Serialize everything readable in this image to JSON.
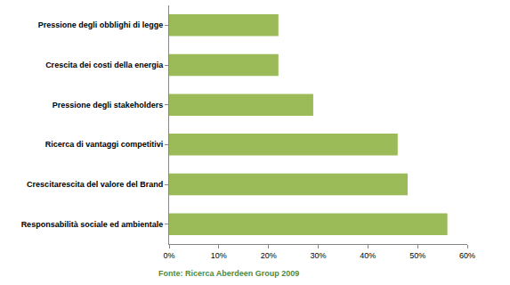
{
  "chart_data": {
    "type": "bar",
    "orientation": "horizontal",
    "categories": [
      "Pressione degli obblighi di legge",
      "Crescita dei costi della energia",
      "Pressione degli stakeholders",
      "Ricerca di vantaggi competitivi",
      "Crescitarescita del valore del Brand",
      "Responsabilità sociale ed ambientale"
    ],
    "values": [
      22,
      22,
      29,
      46,
      48,
      56
    ],
    "color": "#9bbb59",
    "xlim": [
      0,
      60
    ],
    "xticks": [
      {
        "value": 0,
        "label": "0%"
      },
      {
        "value": 10,
        "label": "10%"
      },
      {
        "value": 20,
        "label": "20%"
      },
      {
        "value": 30,
        "label": "30%"
      },
      {
        "value": 40,
        "label": "40%"
      },
      {
        "value": 50,
        "label": "50%"
      },
      {
        "value": 60,
        "label": "60%"
      }
    ],
    "grid": false,
    "data_labels": false,
    "annotations": [
      "Fonte: Ricerca Aberdeen Group 2009"
    ]
  }
}
